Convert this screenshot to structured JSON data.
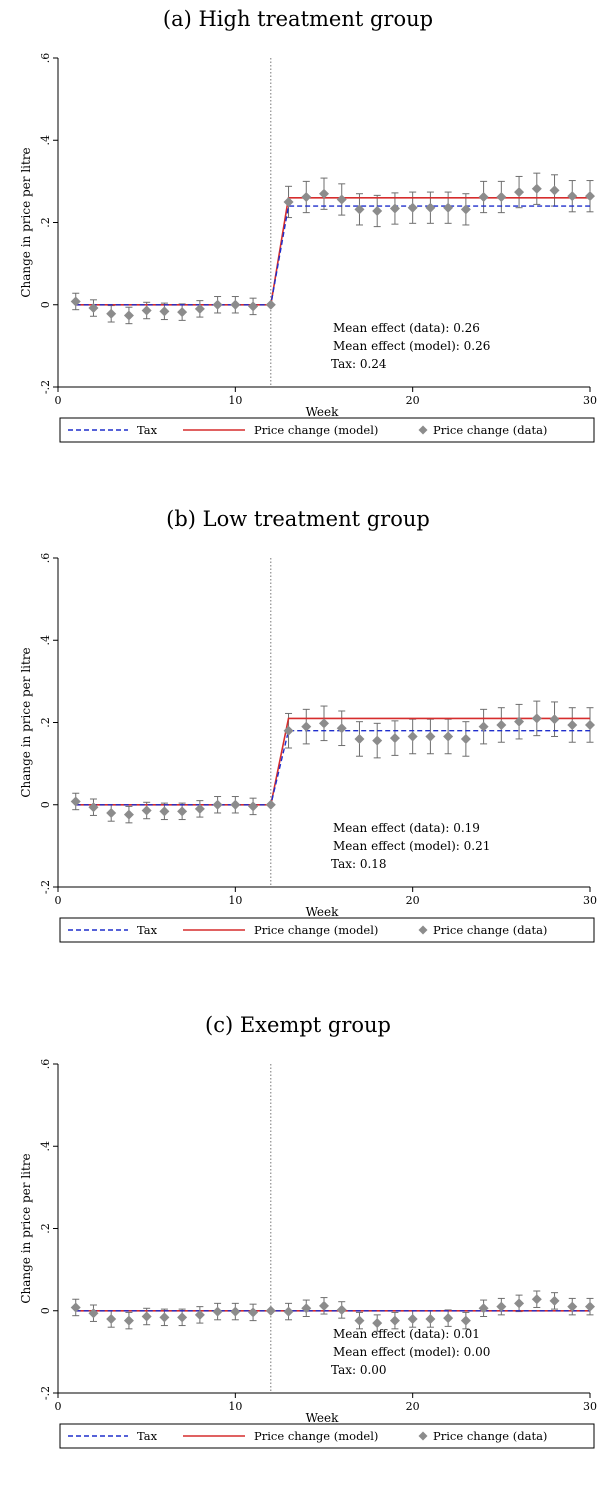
{
  "chart_data": [
    {
      "type": "line",
      "title": "(a) High treatment group",
      "xlabel": "Week",
      "ylabel": "Change in price per litre",
      "xlim": [
        0,
        30
      ],
      "ylim": [
        -0.2,
        0.6
      ],
      "xticks": [
        0,
        10,
        20,
        30
      ],
      "yticks": [
        -0.2,
        0,
        0.2,
        0.4,
        0.6
      ],
      "xtick_labels": [
        "0",
        "10",
        "20",
        "30"
      ],
      "ytick_labels": [
        "-.2",
        "0",
        ".2",
        ".4",
        ".6"
      ],
      "vline_x": 12,
      "annotations": [
        "Mean effect (data): 0.26",
        "Mean effect (model): 0.26",
        "Tax: 0.24"
      ],
      "legend": [
        "Tax",
        "Price change (model)",
        "Price change (data)"
      ],
      "series": [
        {
          "name": "Tax",
          "x": [
            1,
            12,
            13,
            30
          ],
          "values": [
            0,
            0,
            0.24,
            0.24
          ],
          "color": "#1f2ecc"
        },
        {
          "name": "Price change (model)",
          "x": [
            1,
            12,
            13,
            30
          ],
          "values": [
            0,
            0,
            0.26,
            0.26
          ],
          "color": "#d62d2d"
        },
        {
          "name": "Price change (data)",
          "color": "#8c8c8c",
          "x": [
            1,
            2,
            3,
            4,
            5,
            6,
            7,
            8,
            9,
            10,
            11,
            12,
            13,
            14,
            15,
            16,
            17,
            18,
            19,
            20,
            21,
            22,
            23,
            24,
            25,
            26,
            27,
            28,
            29,
            30
          ],
          "values": [
            0.008,
            -0.008,
            -0.022,
            -0.026,
            -0.014,
            -0.016,
            -0.018,
            -0.01,
            0.0,
            0.0,
            -0.004,
            0.0,
            0.25,
            0.262,
            0.27,
            0.256,
            0.232,
            0.228,
            0.234,
            0.236,
            0.236,
            0.236,
            0.232,
            0.262,
            0.262,
            0.274,
            0.282,
            0.278,
            0.264,
            0.264
          ],
          "ci_low": [
            -0.012,
            -0.028,
            -0.042,
            -0.046,
            -0.034,
            -0.036,
            -0.038,
            -0.03,
            -0.02,
            -0.02,
            -0.024,
            0.0,
            0.212,
            0.224,
            0.232,
            0.218,
            0.194,
            0.19,
            0.196,
            0.198,
            0.198,
            0.198,
            0.194,
            0.224,
            0.224,
            0.236,
            0.244,
            0.24,
            0.226,
            0.226
          ],
          "ci_high": [
            0.028,
            0.012,
            -0.002,
            -0.006,
            0.006,
            0.004,
            0.002,
            0.01,
            0.02,
            0.02,
            0.016,
            0.0,
            0.288,
            0.3,
            0.308,
            0.294,
            0.27,
            0.266,
            0.272,
            0.274,
            0.274,
            0.274,
            0.27,
            0.3,
            0.3,
            0.312,
            0.32,
            0.316,
            0.302,
            0.302
          ]
        }
      ]
    },
    {
      "type": "line",
      "title": "(b) Low treatment group",
      "xlabel": "Week",
      "ylabel": "Change in price per litre",
      "xlim": [
        0,
        30
      ],
      "ylim": [
        -0.2,
        0.6
      ],
      "xticks": [
        0,
        10,
        20,
        30
      ],
      "yticks": [
        -0.2,
        0,
        0.2,
        0.4,
        0.6
      ],
      "xtick_labels": [
        "0",
        "10",
        "20",
        "30"
      ],
      "ytick_labels": [
        "-.2",
        "0",
        ".2",
        ".4",
        ".6"
      ],
      "vline_x": 12,
      "annotations": [
        "Mean effect (data): 0.19",
        "Mean effect (model): 0.21",
        "Tax: 0.18"
      ],
      "legend": [
        "Tax",
        "Price change (model)",
        "Price change (data)"
      ],
      "series": [
        {
          "name": "Tax",
          "x": [
            1,
            12,
            13,
            30
          ],
          "values": [
            0,
            0,
            0.18,
            0.18
          ],
          "color": "#1f2ecc"
        },
        {
          "name": "Price change (model)",
          "x": [
            1,
            12,
            13,
            30
          ],
          "values": [
            0,
            0,
            0.21,
            0.21
          ],
          "color": "#d62d2d"
        },
        {
          "name": "Price change (data)",
          "color": "#8c8c8c",
          "x": [
            1,
            2,
            3,
            4,
            5,
            6,
            7,
            8,
            9,
            10,
            11,
            12,
            13,
            14,
            15,
            16,
            17,
            18,
            19,
            20,
            21,
            22,
            23,
            24,
            25,
            26,
            27,
            28,
            29,
            30
          ],
          "values": [
            0.008,
            -0.006,
            -0.02,
            -0.024,
            -0.014,
            -0.016,
            -0.016,
            -0.01,
            0.0,
            0.0,
            -0.004,
            0.0,
            0.18,
            0.19,
            0.198,
            0.186,
            0.16,
            0.156,
            0.162,
            0.166,
            0.166,
            0.166,
            0.16,
            0.19,
            0.194,
            0.202,
            0.21,
            0.208,
            0.194,
            0.194
          ],
          "ci_low": [
            -0.012,
            -0.026,
            -0.04,
            -0.044,
            -0.034,
            -0.036,
            -0.036,
            -0.03,
            -0.02,
            -0.02,
            -0.024,
            0.0,
            0.138,
            0.148,
            0.156,
            0.144,
            0.118,
            0.114,
            0.12,
            0.124,
            0.124,
            0.124,
            0.118,
            0.148,
            0.152,
            0.16,
            0.168,
            0.166,
            0.152,
            0.152
          ],
          "ci_high": [
            0.028,
            0.014,
            0.0,
            -0.004,
            0.006,
            0.004,
            0.004,
            0.01,
            0.02,
            0.02,
            0.016,
            0.0,
            0.222,
            0.232,
            0.24,
            0.228,
            0.202,
            0.198,
            0.204,
            0.208,
            0.208,
            0.208,
            0.202,
            0.232,
            0.236,
            0.244,
            0.252,
            0.25,
            0.236,
            0.236
          ]
        }
      ]
    },
    {
      "type": "line",
      "title": "(c) Exempt group",
      "xlabel": "Week",
      "ylabel": "Change in price per litre",
      "xlim": [
        0,
        30
      ],
      "ylim": [
        -0.2,
        0.6
      ],
      "xticks": [
        0,
        10,
        20,
        30
      ],
      "yticks": [
        -0.2,
        0,
        0.2,
        0.4,
        0.6
      ],
      "xtick_labels": [
        "0",
        "10",
        "20",
        "30"
      ],
      "ytick_labels": [
        "-.2",
        "0",
        ".2",
        ".4",
        ".6"
      ],
      "vline_x": 12,
      "annotations": [
        "Mean effect (data): 0.01",
        "Mean effect (model): 0.00",
        "Tax: 0.00"
      ],
      "legend": [
        "Tax",
        "Price change (model)",
        "Price change (data)"
      ],
      "series": [
        {
          "name": "Tax",
          "x": [
            1,
            12,
            13,
            30
          ],
          "values": [
            0,
            0,
            0,
            0
          ],
          "color": "#1f2ecc"
        },
        {
          "name": "Price change (model)",
          "x": [
            1,
            12,
            13,
            30
          ],
          "values": [
            0,
            0,
            0,
            0
          ],
          "color": "#d62d2d"
        },
        {
          "name": "Price change (data)",
          "color": "#8c8c8c",
          "x": [
            1,
            2,
            3,
            4,
            5,
            6,
            7,
            8,
            9,
            10,
            11,
            12,
            13,
            14,
            15,
            16,
            17,
            18,
            19,
            20,
            21,
            22,
            23,
            24,
            25,
            26,
            27,
            28,
            29,
            30
          ],
          "values": [
            0.008,
            -0.006,
            -0.02,
            -0.024,
            -0.014,
            -0.016,
            -0.016,
            -0.01,
            -0.002,
            -0.002,
            -0.004,
            0.0,
            -0.002,
            0.006,
            0.012,
            0.002,
            -0.024,
            -0.03,
            -0.024,
            -0.02,
            -0.02,
            -0.018,
            -0.024,
            0.006,
            0.01,
            0.018,
            0.028,
            0.024,
            0.01,
            0.01
          ],
          "ci_low": [
            -0.012,
            -0.026,
            -0.04,
            -0.044,
            -0.034,
            -0.036,
            -0.036,
            -0.03,
            -0.022,
            -0.022,
            -0.024,
            0.0,
            -0.022,
            -0.014,
            -0.008,
            -0.018,
            -0.044,
            -0.05,
            -0.044,
            -0.04,
            -0.04,
            -0.038,
            -0.044,
            -0.014,
            -0.01,
            -0.002,
            0.008,
            0.004,
            -0.01,
            -0.01
          ],
          "ci_high": [
            0.028,
            0.014,
            0.0,
            -0.004,
            0.006,
            0.004,
            0.004,
            0.01,
            0.018,
            0.018,
            0.016,
            0.0,
            0.018,
            0.026,
            0.032,
            0.022,
            -0.004,
            -0.01,
            -0.004,
            0.0,
            0.0,
            0.002,
            -0.004,
            0.026,
            0.03,
            0.038,
            0.048,
            0.044,
            0.03,
            0.03
          ]
        }
      ]
    }
  ]
}
